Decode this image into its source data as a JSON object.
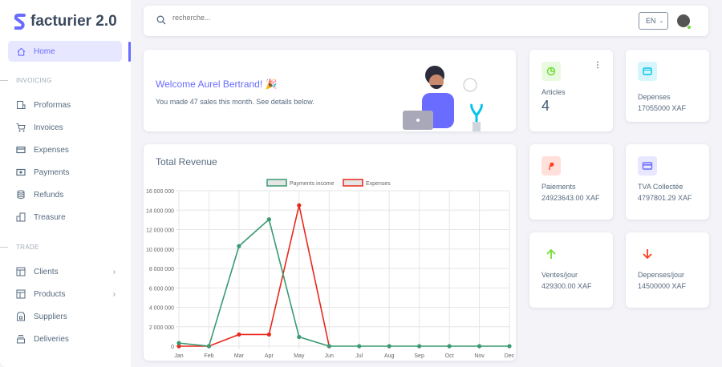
{
  "app": {
    "name": "facturier 2.0"
  },
  "sidebar": {
    "home": "Home",
    "sections": [
      {
        "title": "INVOICING"
      },
      {
        "title": "TRADE"
      }
    ],
    "invoicing": [
      {
        "label": "Proformas",
        "icon": "proforma-icon"
      },
      {
        "label": "Invoices",
        "icon": "cart-icon"
      },
      {
        "label": "Expenses",
        "icon": "card-icon"
      },
      {
        "label": "Payments",
        "icon": "money-icon"
      },
      {
        "label": "Refunds",
        "icon": "database-icon"
      },
      {
        "label": "Treasure",
        "icon": "building-icon"
      }
    ],
    "trade": [
      {
        "label": "Clients",
        "icon": "layout-icon"
      },
      {
        "label": "Products",
        "icon": "layout-icon"
      },
      {
        "label": "Suppliers",
        "icon": "store-icon"
      },
      {
        "label": "Deliveries",
        "icon": "box-icon"
      }
    ]
  },
  "topbar": {
    "search_placeholder": "recherche...",
    "language": "EN"
  },
  "welcome": {
    "title": "Welcome Aurel Bertrand! 🎉",
    "subtitle": "You made 47 sales this month. See details below."
  },
  "stats": [
    {
      "label": "Articles",
      "value": "4",
      "icon": "pie-chart-icon",
      "color": "#71dd37"
    },
    {
      "label": "Depenses",
      "value": "17055000 XAF",
      "icon": "wallet-icon",
      "color": "#03c3ec"
    },
    {
      "label": "Paiements",
      "value": "24923643.00 XAF",
      "icon": "paypal-icon",
      "color": "#ff3e1d"
    },
    {
      "label": "TVA Collectée",
      "value": "4797801.29 XAF",
      "icon": "credit-card-icon",
      "color": "#696cff"
    },
    {
      "label": "Ventes/jour",
      "value": "429300.00 XAF",
      "icon": "arrow-up-icon",
      "color": "#71dd37"
    },
    {
      "label": "Depenses/jour",
      "value": "14500000 XAF",
      "icon": "arrow-down-icon",
      "color": "#ff3e1d"
    }
  ],
  "chart_data": {
    "type": "line",
    "title": "Total Revenue",
    "legend_position": "top",
    "grid": true,
    "categories": [
      "Jan",
      "Feb",
      "Mar",
      "Apr",
      "May",
      "Jun",
      "Jul",
      "Aug",
      "Sep",
      "Oct",
      "Nov",
      "Dec"
    ],
    "ylim": [
      0,
      16000000
    ],
    "yticks": [
      "0",
      "2 000 000",
      "4 000 000",
      "6 000 000",
      "8 000 000",
      "10 000 000",
      "12 000 000",
      "14 000 000",
      "16 000 000"
    ],
    "series": [
      {
        "name": "Payments income",
        "color": "#3a9a72",
        "values": [
          320000,
          0,
          10300000,
          13050000,
          950000,
          0,
          0,
          0,
          0,
          0,
          0,
          0
        ]
      },
      {
        "name": "Expenses",
        "color": "#e8281c",
        "values": [
          0,
          0,
          1200000,
          1200000,
          14500000,
          0,
          null,
          null,
          null,
          null,
          null,
          null
        ]
      }
    ]
  }
}
